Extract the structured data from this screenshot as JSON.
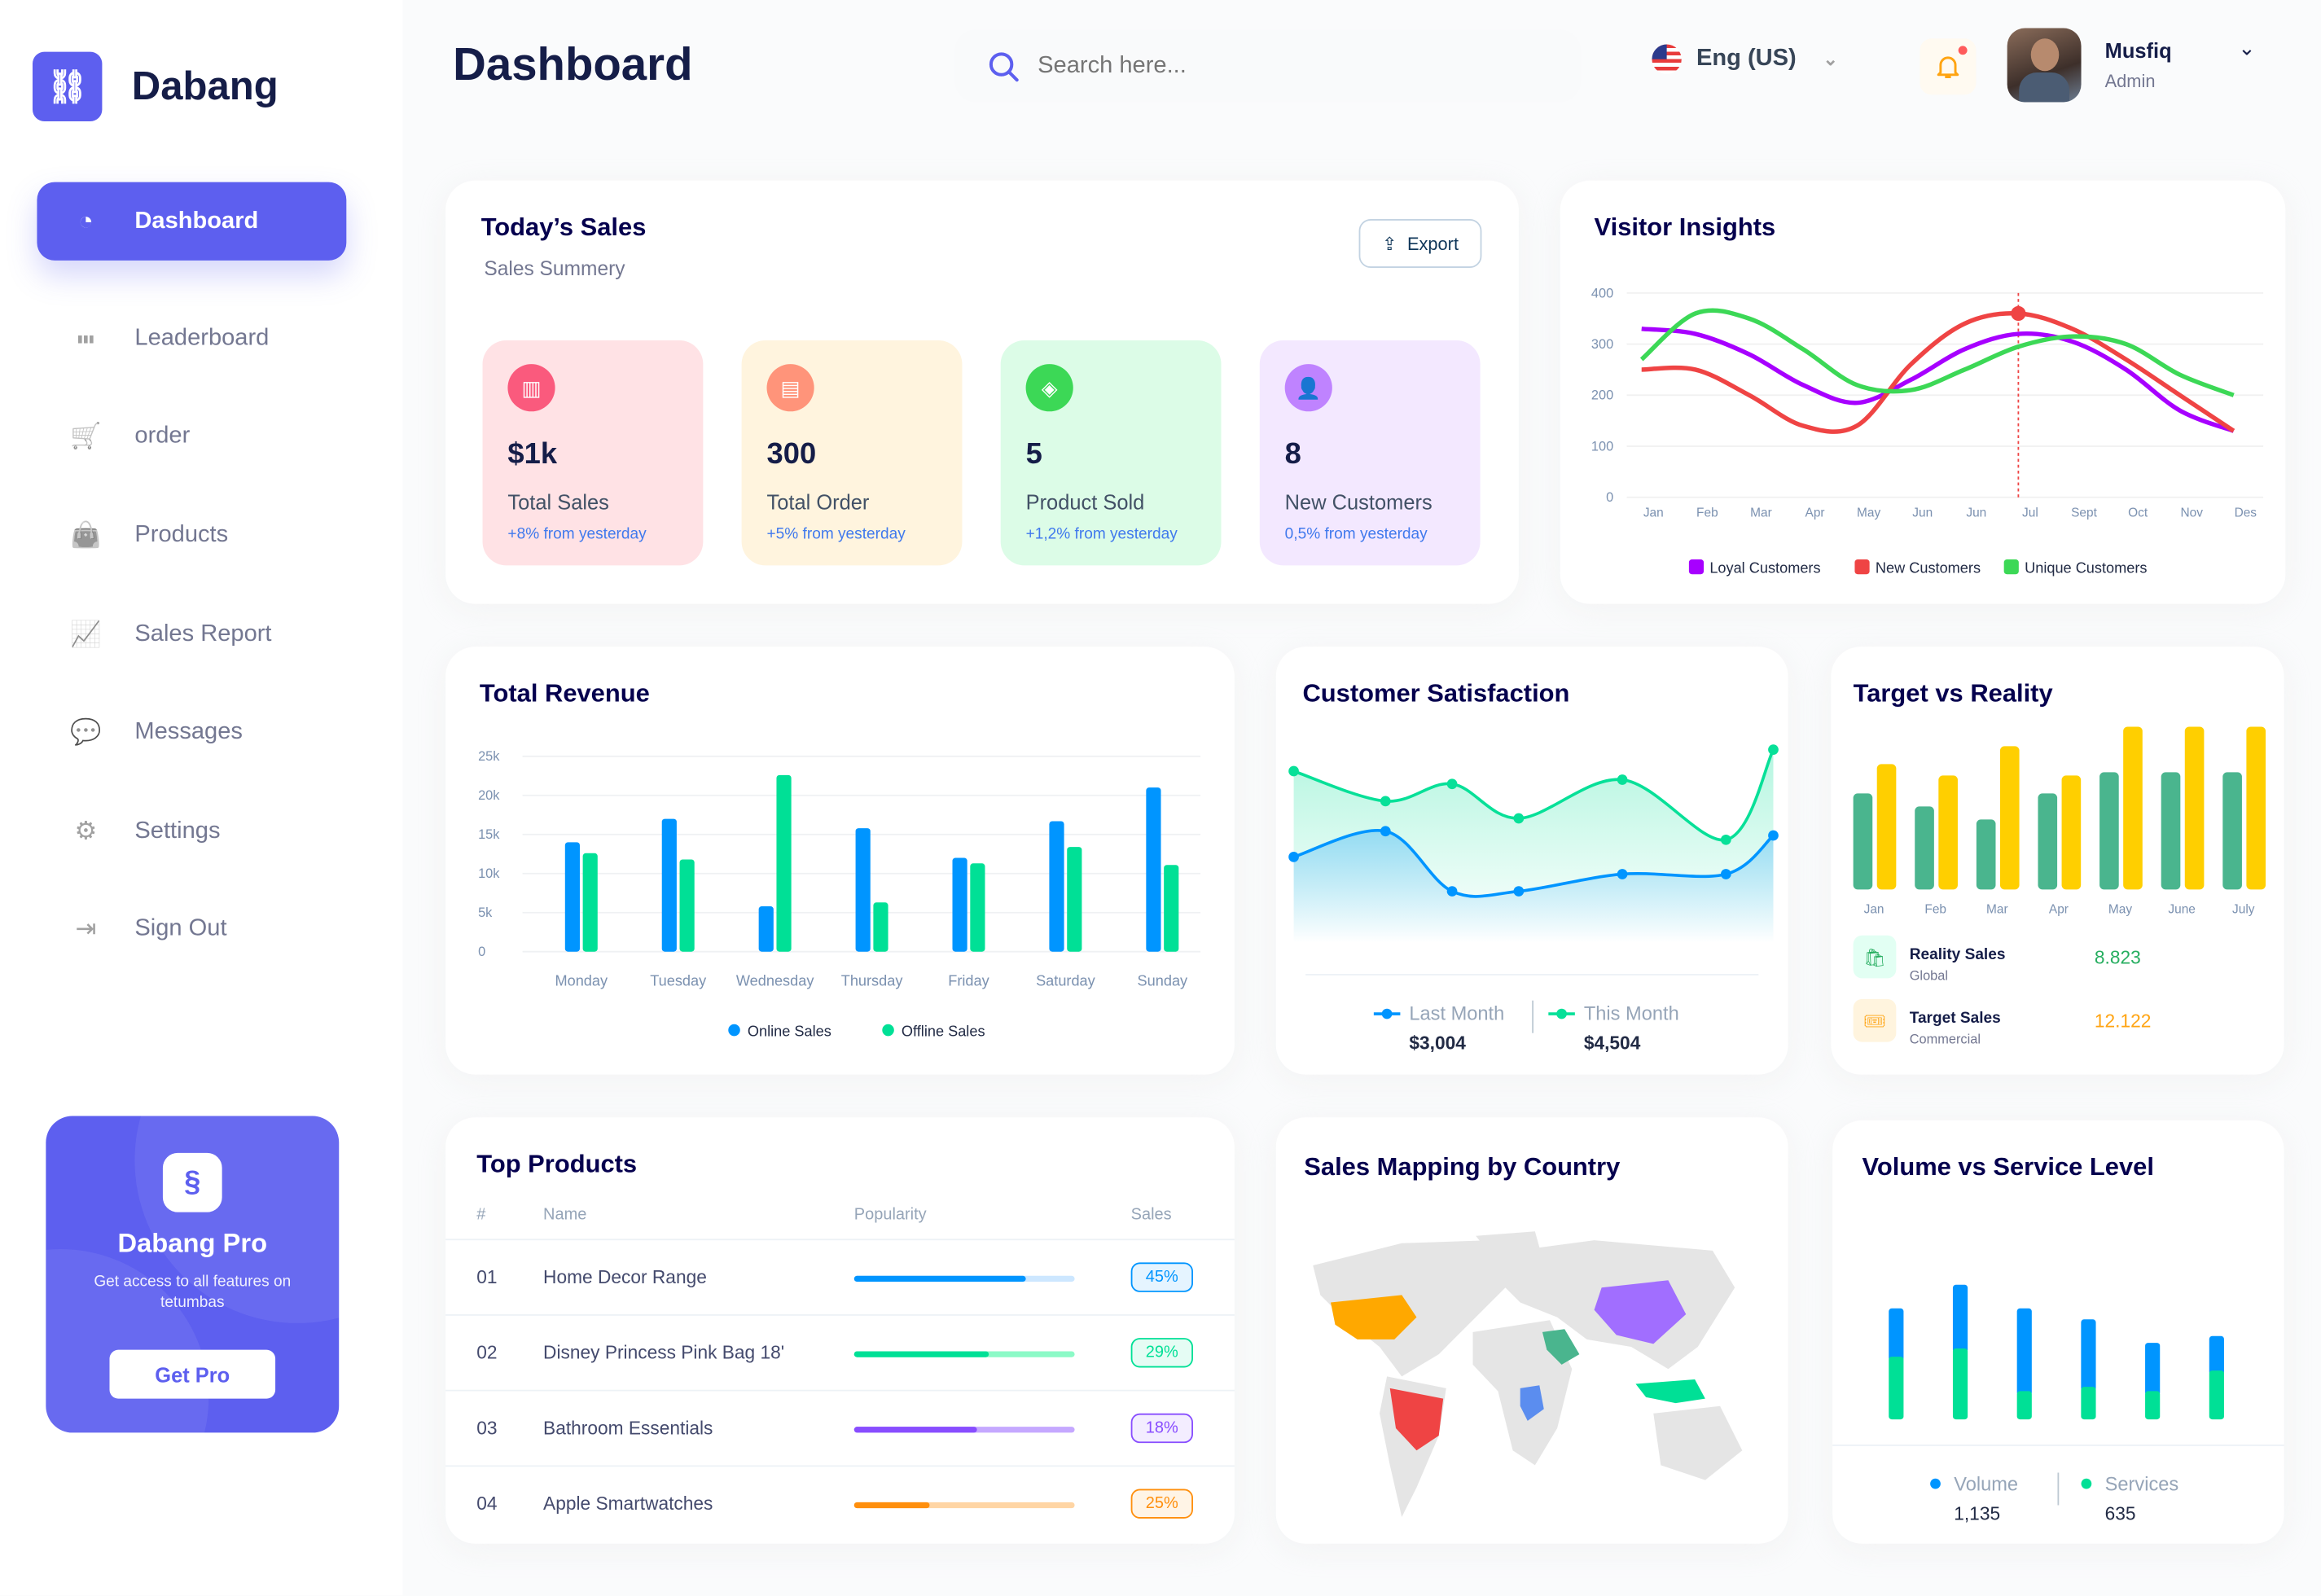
{
  "brand": {
    "name": "Dabang",
    "logo_icon": "link-icon"
  },
  "sidebar": {
    "items": [
      {
        "label": "Dashboard",
        "icon": "pie-chart-icon",
        "active": true
      },
      {
        "label": "Leaderboard",
        "icon": "bar-chart-icon"
      },
      {
        "label": "order",
        "icon": "cart-icon"
      },
      {
        "label": "Products",
        "icon": "shopping-bag-icon"
      },
      {
        "label": "Sales Report",
        "icon": "line-chart-icon"
      },
      {
        "label": "Messages",
        "icon": "message-icon"
      },
      {
        "label": "Settings",
        "icon": "gear-icon"
      },
      {
        "label": "Sign Out",
        "icon": "sign-out-icon"
      }
    ],
    "pro": {
      "title": "Dabang Pro",
      "desc": "Get access to all features on tetumbas",
      "button": "Get Pro"
    }
  },
  "header": {
    "title": "Dashboard",
    "search_placeholder": "Search here...",
    "language": "Eng (US)",
    "user_name": "Musfiq",
    "user_role": "Admin"
  },
  "colors": {
    "accent": "#5D5FEF",
    "blue": "#0095FF",
    "green": "#00E096",
    "purple": "#A700FF",
    "red": "#EF4444",
    "lime": "#3CD856",
    "teal": "#4AB58E",
    "yellow": "#FFCF00"
  },
  "todays_sales": {
    "title": "Today’s Sales",
    "subtitle": "Sales Summery",
    "export": "Export",
    "stats": [
      {
        "value": "$1k",
        "label": "Total Sales",
        "change": "+8% from yesterday",
        "bg": "#FFE2E5",
        "icon_bg": "#FA5A7D",
        "icon": "chart-icon"
      },
      {
        "value": "300",
        "label": "Total Order",
        "change": "+5% from yesterday",
        "bg": "#FFF4DE",
        "icon_bg": "#FF947A",
        "icon": "document-icon"
      },
      {
        "value": "5",
        "label": "Product Sold",
        "change": "+1,2% from yesterday",
        "bg": "#DCFCE7",
        "icon_bg": "#3CD856",
        "icon": "tag-icon"
      },
      {
        "value": "8",
        "label": "New Customers",
        "change": "0,5% from yesterday",
        "bg": "#F3E8FF",
        "icon_bg": "#BF83FF",
        "icon": "add-user-icon"
      }
    ]
  },
  "visitor_insights": {
    "title": "Visitor Insights"
  },
  "total_revenue": {
    "title": "Total Revenue"
  },
  "customer_satisfaction": {
    "title": "Customer Satisfaction",
    "last_label": "Last Month",
    "last_value": "$3,004",
    "this_label": "This Month",
    "this_value": "$4,504"
  },
  "target_vs_reality": {
    "title": "Target vs Reality",
    "rows": [
      {
        "label": "Reality Sales",
        "sub": "Global",
        "value": "8.823",
        "color": "#27AE60",
        "bg": "#E2FFF3",
        "icon": "bag-icon"
      },
      {
        "label": "Target Sales",
        "sub": "Commercial",
        "value": "12.122",
        "color": "#FFA412",
        "bg": "#FFF4DE",
        "icon": "ticket-icon"
      }
    ]
  },
  "top_products": {
    "title": "Top Products",
    "columns": [
      "#",
      "Name",
      "Popularity",
      "Sales"
    ],
    "rows": [
      {
        "no": "01",
        "name": "Home Decor Range",
        "popularity": 0.78,
        "sales": "45%",
        "color": "#0095FF",
        "track": "#CDE7FF"
      },
      {
        "no": "02",
        "name": "Disney Princess Pink Bag 18'",
        "popularity": 0.61,
        "sales": "29%",
        "color": "#00E096",
        "track": "#8CFAC7"
      },
      {
        "no": "03",
        "name": "Bathroom Essentials",
        "popularity": 0.56,
        "sales": "18%",
        "color": "#884DFF",
        "track": "#C5A8FF"
      },
      {
        "no": "04",
        "name": "Apple Smartwatches",
        "popularity": 0.34,
        "sales": "25%",
        "color": "#FF8F0D",
        "track": "#FFD5A4"
      }
    ]
  },
  "sales_mapping": {
    "title": "Sales Mapping by Country"
  },
  "volume_service": {
    "title": "Volume vs Service Level",
    "volume_label": "Volume",
    "volume_value": "1,135",
    "services_label": "Services",
    "services_value": "635"
  },
  "chart_data": [
    {
      "id": "visitor",
      "type": "line",
      "title": "Visitor Insights",
      "categories": [
        "Jan",
        "Feb",
        "Mar",
        "Apr",
        "May",
        "Jun",
        "Jun",
        "Jul",
        "Sept",
        "Oct",
        "Nov",
        "Des"
      ],
      "ylim": [
        0,
        400
      ],
      "yticks": [
        0,
        100,
        200,
        300,
        400
      ],
      "grid": true,
      "legend": "bottom",
      "highlight": {
        "series": "New Customers",
        "category": "Jul",
        "value": 360
      },
      "series": [
        {
          "name": "Loyal Customers",
          "color": "#A700FF",
          "values": [
            330,
            320,
            280,
            220,
            185,
            230,
            290,
            320,
            305,
            250,
            170,
            130
          ]
        },
        {
          "name": "New Customers",
          "color": "#EF4444",
          "values": [
            250,
            250,
            200,
            140,
            140,
            260,
            340,
            360,
            330,
            270,
            200,
            130
          ]
        },
        {
          "name": "Unique Customers",
          "color": "#3CD856",
          "values": [
            270,
            360,
            350,
            290,
            220,
            210,
            250,
            295,
            315,
            300,
            240,
            200
          ]
        }
      ]
    },
    {
      "id": "revenue",
      "type": "bar",
      "title": "Total Revenue",
      "categories": [
        "Monday",
        "Tuesday",
        "Wednesday",
        "Thursday",
        "Friday",
        "Saturday",
        "Sunday"
      ],
      "ylim": [
        0,
        25000
      ],
      "yticks": [
        "0",
        "5k",
        "10k",
        "15k",
        "20k",
        "25k"
      ],
      "grid": true,
      "legend": "bottom",
      "series": [
        {
          "name": "Online Sales",
          "color": "#0095FF",
          "values": [
            14000,
            17000,
            5800,
            15800,
            12000,
            16700,
            21000
          ]
        },
        {
          "name": "Offline Sales",
          "color": "#00E096",
          "values": [
            12600,
            11800,
            22600,
            6300,
            11300,
            13400,
            11100
          ]
        }
      ]
    },
    {
      "id": "satisfaction",
      "type": "area",
      "title": "Customer Satisfaction",
      "legend": "bottom",
      "series": [
        {
          "name": "Last Month",
          "color": "#0095FF",
          "values": [
            2.0,
            2.6,
            1.2,
            1.2,
            1.6,
            1.6,
            2.5
          ]
        },
        {
          "name": "This Month",
          "color": "#07E098",
          "values": [
            4.0,
            3.3,
            3.7,
            2.9,
            3.8,
            2.4,
            4.5
          ]
        }
      ]
    },
    {
      "id": "target",
      "type": "bar",
      "title": "Target vs Reality",
      "categories": [
        "Jan",
        "Feb",
        "Mar",
        "Apr",
        "May",
        "June",
        "July"
      ],
      "series": [
        {
          "name": "Reality Sales",
          "color": "#4AB58E",
          "values": [
            5.9,
            5.1,
            4.3,
            5.9,
            7.2,
            7.2,
            7.2
          ]
        },
        {
          "name": "Target Sales",
          "color": "#FFCF00",
          "values": [
            7.7,
            7.0,
            8.8,
            7.0,
            10,
            10,
            10
          ]
        }
      ]
    },
    {
      "id": "volume",
      "type": "stacked-bar",
      "title": "Volume vs Service Level",
      "legend": "bottom",
      "series": [
        {
          "name": "Services",
          "color": "#00E096",
          "values": [
            353,
            399,
            159,
            183,
            159,
            275
          ]
        },
        {
          "name": "Volume",
          "color": "#0095FF",
          "values": [
            272,
            359,
            466,
            380,
            272,
            194
          ]
        }
      ]
    }
  ],
  "map_regions": [
    {
      "name": "usa",
      "color": "#FFA800"
    },
    {
      "name": "brazil",
      "color": "#EF4444"
    },
    {
      "name": "china",
      "color": "#A16EFF"
    },
    {
      "name": "saudi-arabia",
      "color": "#4AB58E"
    },
    {
      "name": "indonesia",
      "color": "#00E096"
    },
    {
      "name": "congo",
      "color": "#5B8DEF"
    }
  ]
}
